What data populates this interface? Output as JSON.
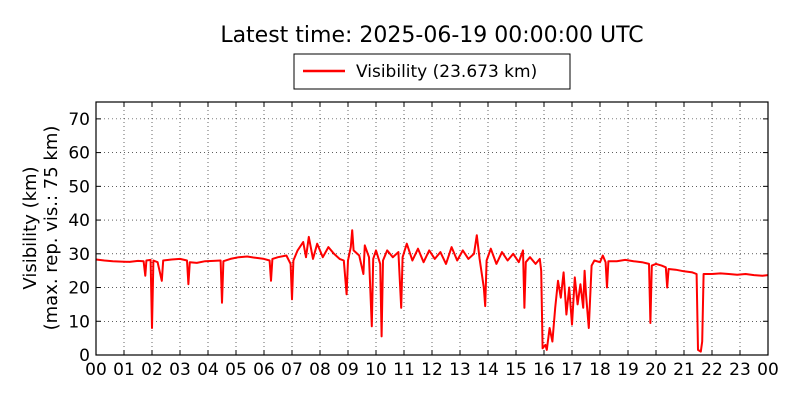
{
  "chart_data": {
    "type": "line",
    "title": "Latest time: 2025-06-19 00:00:00 UTC",
    "xlabel": "",
    "ylabel_line1": "Visibility (km)",
    "ylabel_line2": "(max. rep. vis.: 75 km)",
    "x_tick_labels": [
      "00",
      "01",
      "02",
      "03",
      "04",
      "05",
      "06",
      "07",
      "08",
      "09",
      "10",
      "11",
      "12",
      "13",
      "14",
      "15",
      "16",
      "17",
      "18",
      "19",
      "20",
      "21",
      "22",
      "23",
      "00"
    ],
    "y_ticks": [
      0,
      10,
      20,
      30,
      40,
      50,
      60,
      70
    ],
    "xlim": [
      0,
      24
    ],
    "ylim": [
      0,
      75
    ],
    "grid": true,
    "legend_position": "top-center",
    "series": [
      {
        "name": "Visibility (23.673 km)",
        "color": "#ff0000",
        "points": [
          [
            0.0,
            28.3
          ],
          [
            0.3,
            28.0
          ],
          [
            0.6,
            27.8
          ],
          [
            0.9,
            27.7
          ],
          [
            1.2,
            27.6
          ],
          [
            1.5,
            27.9
          ],
          [
            1.7,
            27.8
          ],
          [
            1.76,
            23.5
          ],
          [
            1.8,
            28.0
          ],
          [
            1.95,
            28.2
          ],
          [
            2.0,
            8.0
          ],
          [
            2.05,
            28.0
          ],
          [
            2.2,
            27.5
          ],
          [
            2.35,
            22.0
          ],
          [
            2.4,
            28.0
          ],
          [
            2.7,
            28.3
          ],
          [
            3.0,
            28.5
          ],
          [
            3.25,
            28.0
          ],
          [
            3.3,
            21.0
          ],
          [
            3.35,
            27.5
          ],
          [
            3.6,
            27.3
          ],
          [
            3.9,
            27.8
          ],
          [
            4.2,
            27.9
          ],
          [
            4.45,
            28.0
          ],
          [
            4.5,
            15.5
          ],
          [
            4.55,
            27.8
          ],
          [
            4.8,
            28.5
          ],
          [
            5.1,
            29.0
          ],
          [
            5.4,
            29.2
          ],
          [
            5.7,
            28.8
          ],
          [
            6.0,
            28.5
          ],
          [
            6.2,
            28.0
          ],
          [
            6.25,
            22.0
          ],
          [
            6.3,
            28.5
          ],
          [
            6.5,
            29.0
          ],
          [
            6.8,
            29.5
          ],
          [
            6.95,
            27.0
          ],
          [
            7.0,
            16.5
          ],
          [
            7.05,
            28.0
          ],
          [
            7.2,
            31.0
          ],
          [
            7.4,
            33.5
          ],
          [
            7.5,
            29.0
          ],
          [
            7.6,
            35.0
          ],
          [
            7.75,
            28.5
          ],
          [
            7.9,
            33.0
          ],
          [
            8.1,
            29.0
          ],
          [
            8.3,
            32.0
          ],
          [
            8.5,
            30.0
          ],
          [
            8.7,
            28.5
          ],
          [
            8.85,
            28.0
          ],
          [
            8.95,
            18.0
          ],
          [
            9.0,
            28.0
          ],
          [
            9.1,
            32.0
          ],
          [
            9.15,
            37.0
          ],
          [
            9.2,
            31.0
          ],
          [
            9.4,
            29.5
          ],
          [
            9.55,
            24.0
          ],
          [
            9.6,
            32.5
          ],
          [
            9.75,
            29.0
          ],
          [
            9.85,
            8.5
          ],
          [
            9.9,
            28.5
          ],
          [
            10.0,
            31.0
          ],
          [
            10.15,
            27.0
          ],
          [
            10.2,
            5.5
          ],
          [
            10.25,
            28.0
          ],
          [
            10.4,
            31.0
          ],
          [
            10.6,
            29.0
          ],
          [
            10.8,
            30.5
          ],
          [
            10.9,
            14.0
          ],
          [
            10.95,
            29.0
          ],
          [
            11.1,
            33.0
          ],
          [
            11.3,
            28.0
          ],
          [
            11.5,
            31.5
          ],
          [
            11.7,
            27.5
          ],
          [
            11.9,
            31.0
          ],
          [
            12.1,
            28.5
          ],
          [
            12.3,
            30.5
          ],
          [
            12.5,
            27.0
          ],
          [
            12.7,
            32.0
          ],
          [
            12.9,
            28.0
          ],
          [
            13.1,
            31.0
          ],
          [
            13.3,
            28.5
          ],
          [
            13.5,
            30.0
          ],
          [
            13.6,
            35.5
          ],
          [
            13.7,
            28.5
          ],
          [
            13.85,
            20.0
          ],
          [
            13.9,
            14.5
          ],
          [
            13.95,
            28.0
          ],
          [
            14.1,
            31.5
          ],
          [
            14.3,
            27.0
          ],
          [
            14.5,
            30.5
          ],
          [
            14.7,
            28.0
          ],
          [
            14.9,
            30.0
          ],
          [
            15.1,
            27.5
          ],
          [
            15.25,
            31.0
          ],
          [
            15.3,
            14.0
          ],
          [
            15.35,
            27.5
          ],
          [
            15.5,
            29.0
          ],
          [
            15.7,
            27.0
          ],
          [
            15.85,
            28.5
          ],
          [
            15.9,
            25.0
          ],
          [
            15.95,
            2.0
          ],
          [
            16.05,
            3.0
          ],
          [
            16.1,
            1.5
          ],
          [
            16.2,
            8.0
          ],
          [
            16.3,
            4.0
          ],
          [
            16.4,
            14.0
          ],
          [
            16.5,
            22.0
          ],
          [
            16.6,
            17.0
          ],
          [
            16.7,
            24.5
          ],
          [
            16.8,
            12.0
          ],
          [
            16.9,
            20.0
          ],
          [
            17.0,
            9.0
          ],
          [
            17.1,
            23.0
          ],
          [
            17.2,
            15.0
          ],
          [
            17.3,
            21.0
          ],
          [
            17.4,
            14.0
          ],
          [
            17.45,
            25.0
          ],
          [
            17.5,
            18.0
          ],
          [
            17.6,
            8.0
          ],
          [
            17.7,
            26.5
          ],
          [
            17.8,
            28.0
          ],
          [
            18.0,
            27.5
          ],
          [
            18.1,
            29.5
          ],
          [
            18.2,
            27.5
          ],
          [
            18.25,
            20.0
          ],
          [
            18.3,
            27.8
          ],
          [
            18.6,
            27.8
          ],
          [
            18.9,
            28.2
          ],
          [
            19.2,
            27.8
          ],
          [
            19.5,
            27.5
          ],
          [
            19.75,
            27.0
          ],
          [
            19.8,
            9.5
          ],
          [
            19.85,
            26.5
          ],
          [
            20.0,
            27.0
          ],
          [
            20.2,
            26.5
          ],
          [
            20.35,
            26.0
          ],
          [
            20.4,
            20.0
          ],
          [
            20.45,
            25.5
          ],
          [
            20.7,
            25.3
          ],
          [
            21.0,
            24.8
          ],
          [
            21.3,
            24.5
          ],
          [
            21.45,
            24.0
          ],
          [
            21.5,
            1.5
          ],
          [
            21.6,
            1.0
          ],
          [
            21.65,
            4.0
          ],
          [
            21.7,
            24.0
          ],
          [
            22.0,
            24.0
          ],
          [
            22.3,
            24.2
          ],
          [
            22.6,
            24.0
          ],
          [
            22.9,
            23.8
          ],
          [
            23.2,
            24.0
          ],
          [
            23.5,
            23.7
          ],
          [
            23.8,
            23.5
          ],
          [
            24.0,
            23.7
          ]
        ]
      }
    ]
  }
}
